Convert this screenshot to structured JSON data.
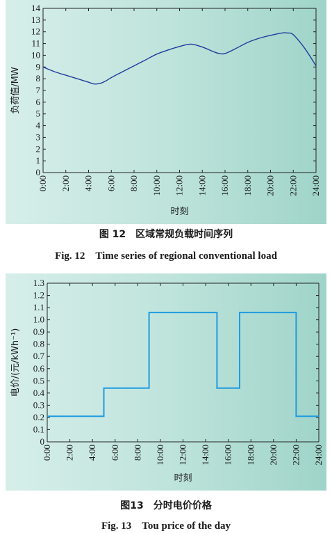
{
  "chart_data": [
    {
      "type": "line",
      "caption_cn": "图 12　区域常规负载时间序列",
      "caption_en": "Fig. 12　Time series of regional conventional load",
      "xlabel": "时刻",
      "ylabel": "负荷值/MW",
      "xlim": [
        0,
        24
      ],
      "ylim": [
        0,
        14
      ],
      "x_ticks": [
        "0:00",
        "2:00",
        "4:00",
        "6:00",
        "8:00",
        "10:00",
        "12:00",
        "14:00",
        "16:00",
        "18:00",
        "20:00",
        "22:00",
        "24:00"
      ],
      "y_ticks": [
        "0",
        "1",
        "2",
        "3",
        "4",
        "5",
        "6",
        "7",
        "8",
        "9",
        "10",
        "11",
        "12",
        "13",
        "14"
      ],
      "line_color": "#1f3c9c",
      "x": [
        0,
        1,
        2,
        3,
        4,
        4.5,
        5,
        5.5,
        6,
        7,
        8,
        9,
        10,
        11,
        12,
        13,
        14,
        15,
        15.5,
        16,
        17,
        18,
        19,
        20,
        21,
        21.5,
        22,
        23,
        24
      ],
      "y": [
        9.0,
        8.6,
        8.3,
        8.0,
        7.7,
        7.55,
        7.6,
        7.8,
        8.1,
        8.6,
        9.1,
        9.6,
        10.1,
        10.45,
        10.75,
        10.95,
        10.7,
        10.3,
        10.15,
        10.15,
        10.6,
        11.1,
        11.45,
        11.7,
        11.9,
        11.9,
        11.75,
        10.6,
        9.1
      ]
    },
    {
      "type": "line",
      "step": true,
      "caption_cn": "图13　分时电价价格",
      "caption_en": "Fig. 13　Tou price of the day",
      "xlabel": "时刻",
      "ylabel": "电价/(元/kWh⁻¹)",
      "xlim": [
        0,
        24
      ],
      "ylim": [
        0,
        1.3
      ],
      "x_ticks": [
        "0:00",
        "2:00",
        "4:00",
        "6:00",
        "8:00",
        "10:00",
        "12:00",
        "14:00",
        "16:00",
        "18:00",
        "20:00",
        "22:00",
        "24:00"
      ],
      "y_ticks": [
        "0",
        "0.1",
        "0.2",
        "0.3",
        "0.4",
        "0.5",
        "0.6",
        "0.7",
        "0.8",
        "0.9",
        "1.0",
        "1.1",
        "1.2",
        "1.3"
      ],
      "line_color": "#1e9be0",
      "x": [
        0,
        5,
        5,
        9,
        9,
        15,
        15,
        17,
        17,
        22,
        22,
        24
      ],
      "y": [
        0.21,
        0.21,
        0.44,
        0.44,
        1.06,
        1.06,
        0.44,
        0.44,
        1.06,
        1.06,
        0.21,
        0.21
      ]
    }
  ]
}
